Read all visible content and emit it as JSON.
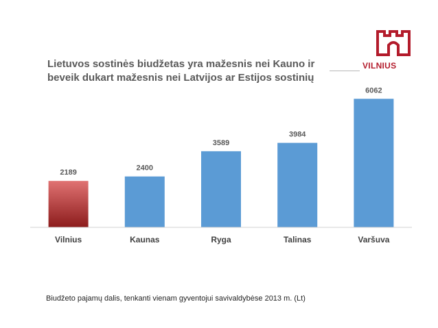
{
  "slide": {
    "title_line1": "Lietuvos sostinės biudžetas yra mažesnis nei Kauno ir",
    "title_line2": "beveik dukart mažesnis nei Latvijos ar Estijos sostinių",
    "logo_text": "VILNIUS",
    "footnote": "Biudžeto pajamų dalis, tenkanti vienam gyventojui savivaldybėse 2013 m. (Lt)"
  },
  "colors": {
    "bar": "#5b9bd5",
    "highlight_top": "#e07272",
    "highlight_bottom": "#8c1c1c",
    "axis": "#d0d0d0",
    "label": "#595959",
    "brand": "#b31b2b"
  },
  "chart_data": {
    "type": "bar",
    "categories": [
      "Vilnius",
      "Kaunas",
      "Ryga",
      "Talinas",
      "Varšuva"
    ],
    "values": [
      2189,
      2400,
      3589,
      3984,
      6062
    ],
    "highlight": "Vilnius",
    "ylim": [
      0,
      6200
    ],
    "grid": false,
    "legend": "none"
  }
}
